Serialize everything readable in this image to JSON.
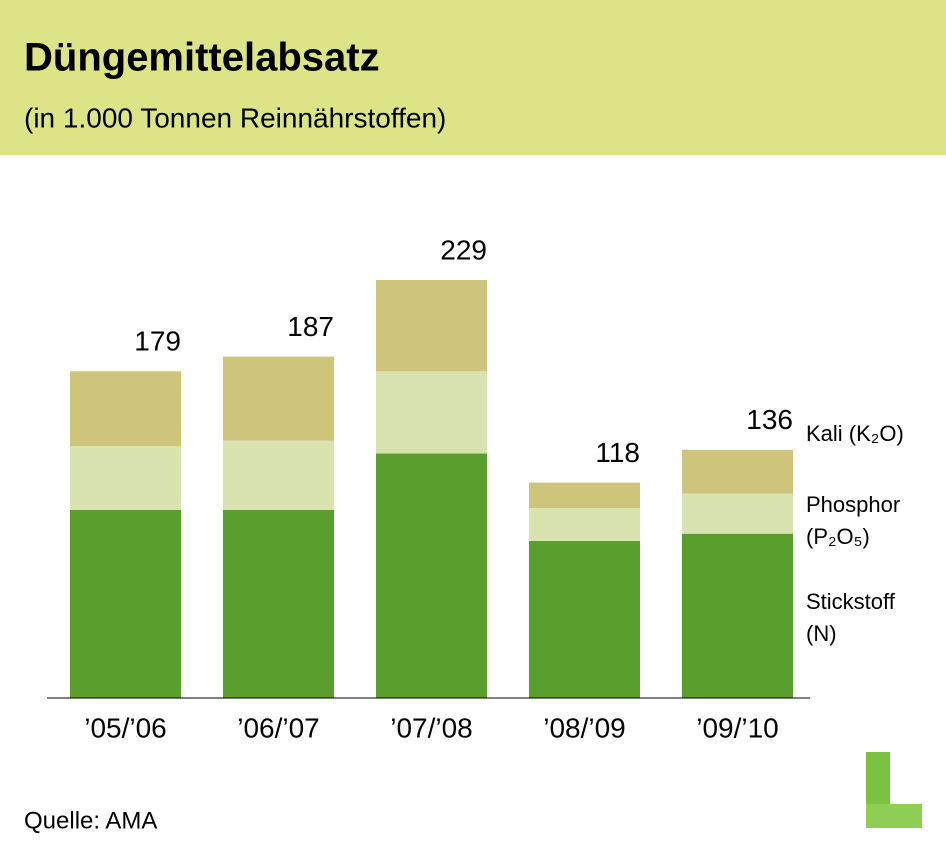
{
  "chart_data": {
    "type": "stacked_bar",
    "title": "Düngemittelabsatz",
    "subtitle": "(in 1.000 Tonnen Reinnährstoffen)",
    "categories": [
      "’05/’06",
      "’06/’07",
      "’07/’08",
      "’08/’09",
      "’09/’10"
    ],
    "series": [
      {
        "name": "Stickstoff (N)",
        "color": "#5a9e2e",
        "values": [
          103,
          103,
          134,
          86,
          90
        ]
      },
      {
        "name": "Phosphor (P₂O₅)",
        "color": "#d9e3b0",
        "values": [
          35,
          38,
          45,
          18,
          22
        ]
      },
      {
        "name": "Kali (K₂O)",
        "color": "#cfc47c",
        "values": [
          41,
          46,
          50,
          14,
          24
        ]
      }
    ],
    "totals": [
      179,
      187,
      229,
      118,
      136
    ],
    "source": "Quelle: AMA"
  }
}
